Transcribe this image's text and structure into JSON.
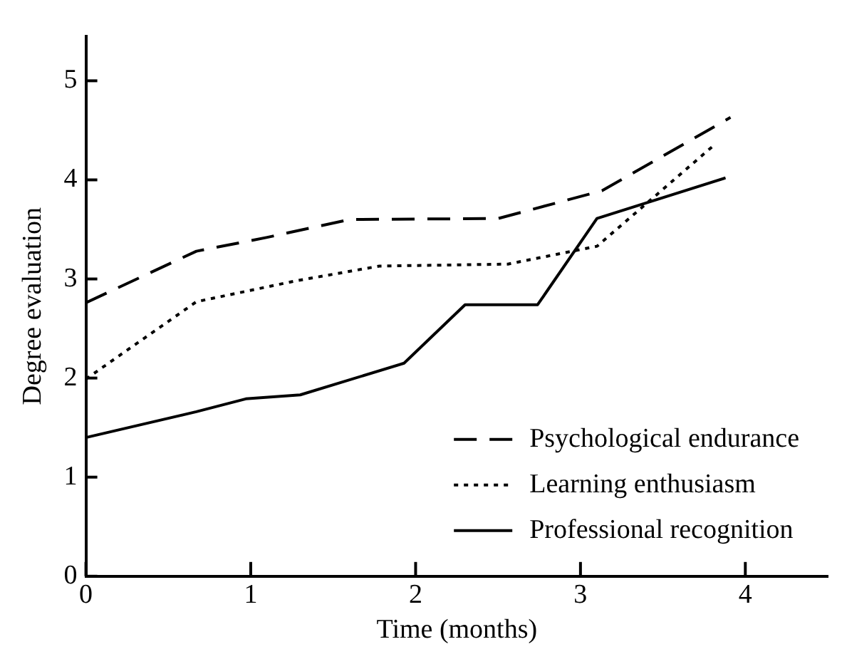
{
  "chart_data": {
    "type": "line",
    "xlabel": "Time (months)",
    "ylabel": "Degree evaluation",
    "xlim": [
      0,
      4.5
    ],
    "ylim": [
      0,
      5.45
    ],
    "xticks": [
      0,
      1,
      2,
      3,
      4
    ],
    "yticks": [
      0,
      1,
      2,
      3,
      4,
      5
    ],
    "grid": false,
    "legend": "bottom right",
    "marker": "none",
    "series": [
      {
        "name": "Psychological endurance",
        "color": "#000000",
        "line_style": "dashed",
        "x": [
          0,
          0.67,
          1.1,
          1.6,
          2.5,
          3.13,
          3.91
        ],
        "values": [
          2.76,
          3.28,
          3.42,
          3.6,
          3.61,
          3.89,
          4.63
        ]
      },
      {
        "name": "Learning enthusiasm",
        "color": "#000000",
        "line_style": "dotted",
        "x": [
          0,
          0.67,
          1.27,
          1.78,
          2.56,
          3.1,
          3.81
        ],
        "values": [
          1.99,
          2.77,
          2.98,
          3.13,
          3.15,
          3.33,
          4.35
        ]
      },
      {
        "name": "Professional recognition",
        "color": "#000000",
        "line_style": "solid",
        "x": [
          0,
          0.67,
          0.97,
          1.3,
          1.93,
          2.3,
          2.74,
          3.1,
          3.88
        ],
        "values": [
          1.4,
          1.66,
          1.79,
          1.83,
          2.15,
          2.74,
          2.74,
          3.61,
          4.02
        ]
      }
    ]
  }
}
